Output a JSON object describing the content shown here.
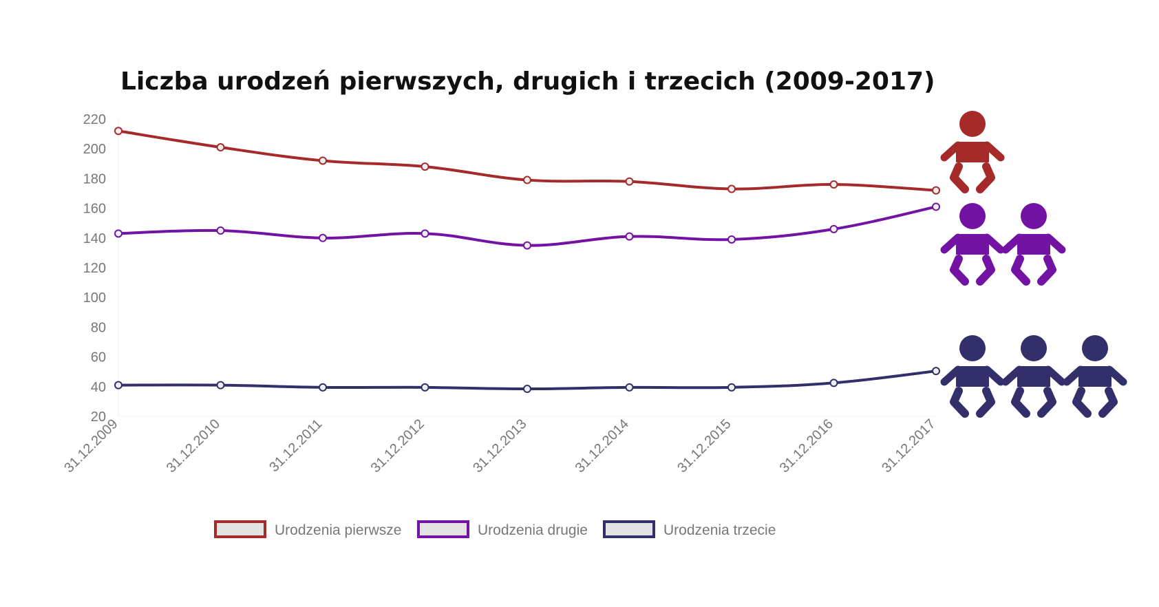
{
  "chart_data": {
    "type": "line",
    "title": "Liczba urodzeń pierwszych, drugich i trzecich (2009-2017)",
    "xlabel": "",
    "ylabel": "",
    "categories": [
      "31.12.2009",
      "31.12.2010",
      "31.12.2011",
      "31.12.2012",
      "31.12.2013",
      "31.12.2014",
      "31.12.2015",
      "31.12.2016",
      "31.12.2017"
    ],
    "ylim": [
      20,
      220
    ],
    "yticks": [
      20,
      40,
      60,
      80,
      100,
      120,
      140,
      160,
      180,
      200,
      220
    ],
    "grid": false,
    "legend_position": "bottom",
    "series": [
      {
        "name": "Urodzenia pierwsze",
        "color": "#A52A2A",
        "icon_count": 1,
        "values": [
          212,
          201,
          192,
          188,
          179,
          178,
          173,
          176,
          172
        ]
      },
      {
        "name": "Urodzenia drugie",
        "color": "#7313A3",
        "icon_count": 2,
        "values": [
          143,
          145,
          140,
          143,
          135,
          141,
          139,
          146,
          161
        ]
      },
      {
        "name": "Urodzenia trzecie",
        "color": "#332F6B",
        "icon_count": 3,
        "values": [
          41,
          41,
          39.5,
          39.5,
          38.5,
          39.5,
          39.5,
          42.5,
          50.5
        ]
      }
    ],
    "icon": "baby-icon"
  }
}
